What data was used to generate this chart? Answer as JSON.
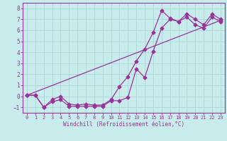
{
  "background_color": "#c8ecec",
  "grid_color": "#b0d8d8",
  "line_color": "#993399",
  "spine_color": "#993399",
  "xlim": [
    -0.5,
    23.5
  ],
  "ylim": [
    -1.5,
    8.5
  ],
  "xticks": [
    0,
    1,
    2,
    3,
    4,
    5,
    6,
    7,
    8,
    9,
    10,
    11,
    12,
    13,
    14,
    15,
    16,
    17,
    18,
    19,
    20,
    21,
    22,
    23
  ],
  "yticks": [
    -1,
    0,
    1,
    2,
    3,
    4,
    5,
    6,
    7,
    8
  ],
  "xlabel": "Windchill (Refroidissement éolien,°C)",
  "series1_x": [
    0,
    1,
    2,
    3,
    4,
    5,
    6,
    7,
    8,
    9,
    10,
    11,
    12,
    13,
    14,
    15,
    16,
    17,
    18,
    19,
    20,
    21,
    22,
    23
  ],
  "series1_y": [
    0.1,
    0.1,
    -1.0,
    -0.5,
    -0.3,
    -0.9,
    -0.9,
    -0.9,
    -0.9,
    -0.9,
    -0.4,
    -0.4,
    -0.1,
    2.5,
    1.7,
    4.1,
    6.2,
    7.0,
    6.8,
    7.5,
    7.0,
    6.5,
    7.5,
    7.0
  ],
  "series2_x": [
    0,
    1,
    2,
    3,
    4,
    5,
    6,
    7,
    8,
    9,
    10,
    11,
    12,
    13,
    14,
    15,
    16,
    17,
    18,
    19,
    20,
    21,
    22,
    23
  ],
  "series2_y": [
    0.1,
    0.1,
    -1.0,
    -0.3,
    0.0,
    -0.7,
    -0.8,
    -0.7,
    -0.8,
    -0.8,
    -0.3,
    0.9,
    1.8,
    3.2,
    4.3,
    5.8,
    7.8,
    7.1,
    6.8,
    7.2,
    6.5,
    6.2,
    7.2,
    6.8
  ],
  "series3_x": [
    0,
    23
  ],
  "series3_y": [
    0.1,
    6.9
  ]
}
